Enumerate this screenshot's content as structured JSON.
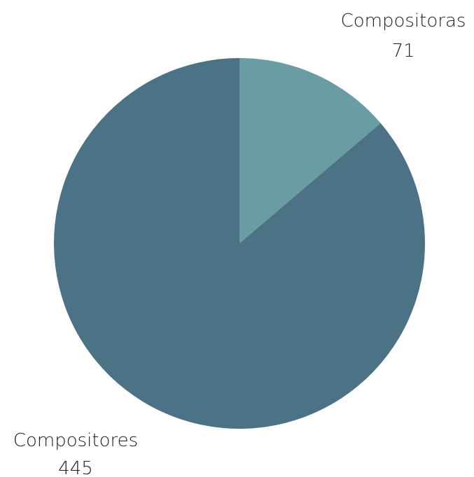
{
  "chart_data": {
    "type": "pie",
    "title": "",
    "slices": [
      {
        "label": "Compositoras",
        "value": 71,
        "display": "71",
        "color": "#6a9ca3"
      },
      {
        "label": "Compositores",
        "value": 445,
        "display": "445",
        "color": "#4c7385"
      }
    ],
    "start_angle": "12 o'clock",
    "direction": "clockwise",
    "legend": "none"
  }
}
